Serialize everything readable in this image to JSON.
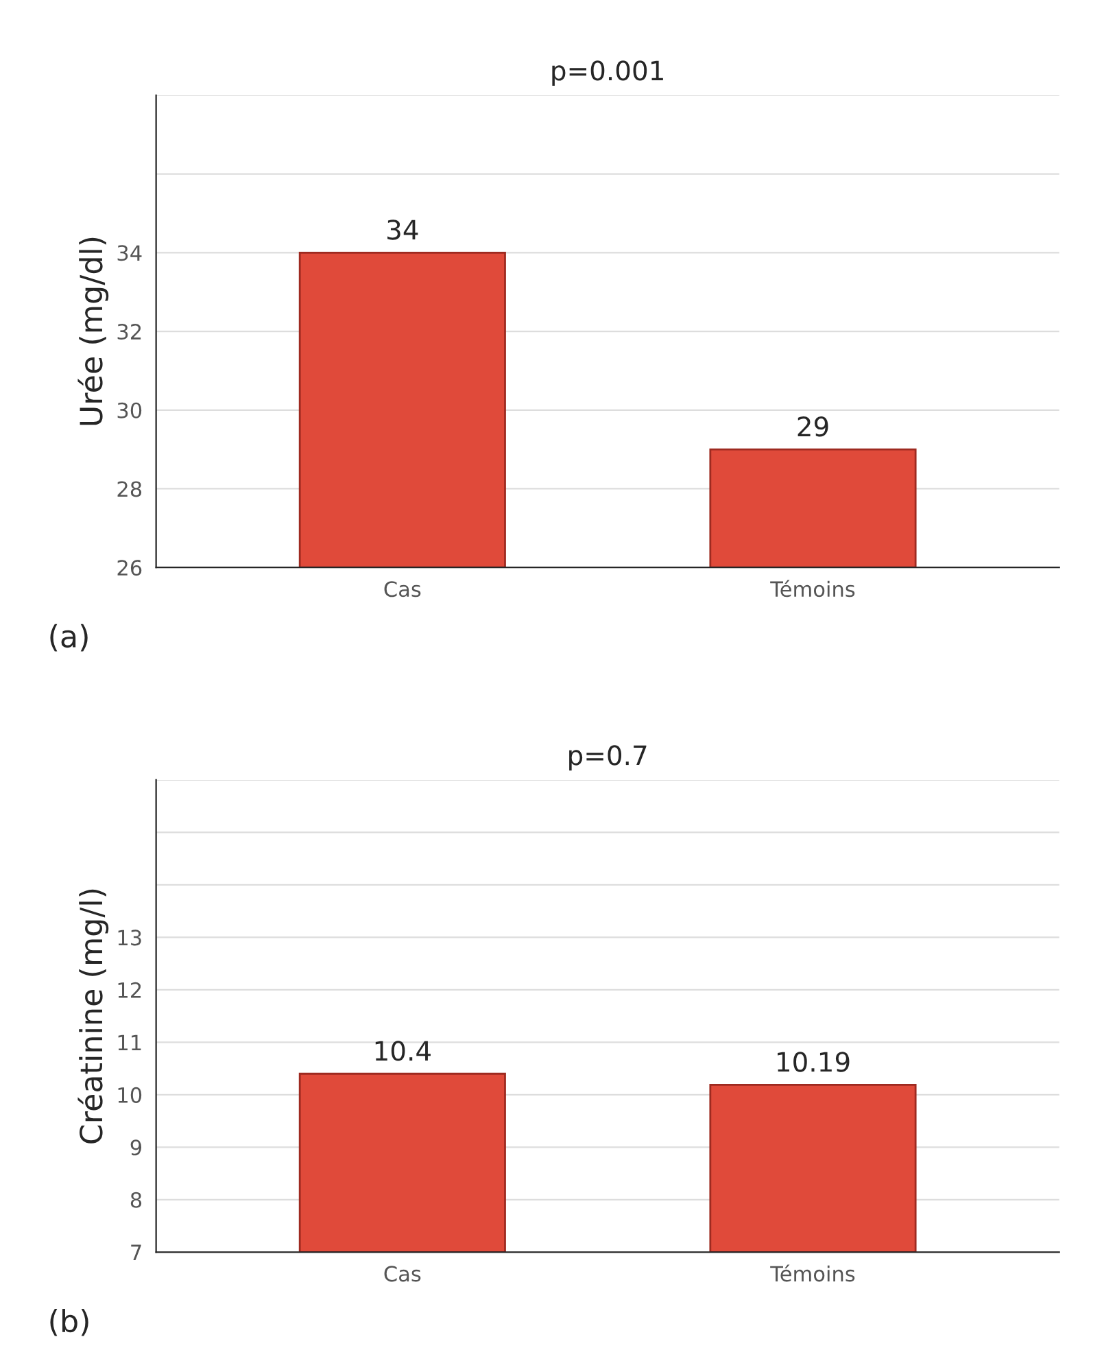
{
  "chart_data": [
    {
      "type": "bar",
      "ylabel": "Urée (mg/dl)",
      "categories": [
        "Cas",
        "Témoins"
      ],
      "values": [
        34,
        29
      ],
      "color": "#e04a3a",
      "data_labels": true,
      "ylim": [
        26,
        38
      ],
      "yticks": [
        26,
        28,
        30,
        32,
        34,
        {
          "value": 36,
          "label": null
        },
        {
          "value": 38,
          "label": null
        }
      ],
      "grid": "y",
      "annotations": [
        "p=0.001",
        "(a)"
      ]
    },
    {
      "type": "bar",
      "ylabel": "Créatinine (mg/l)",
      "categories": [
        "Cas",
        "Témoins"
      ],
      "values": [
        10.4,
        10.19
      ],
      "color": "#e04a3a",
      "data_labels": true,
      "ylim": [
        7,
        16
      ],
      "yticks": [
        7,
        8,
        9,
        10,
        11,
        12,
        13,
        {
          "value": 14,
          "label": null
        },
        {
          "value": 15,
          "label": null
        },
        {
          "value": 16,
          "label": null
        }
      ],
      "grid": "y",
      "annotations": [
        "p=0.7",
        "(b)"
      ]
    }
  ]
}
